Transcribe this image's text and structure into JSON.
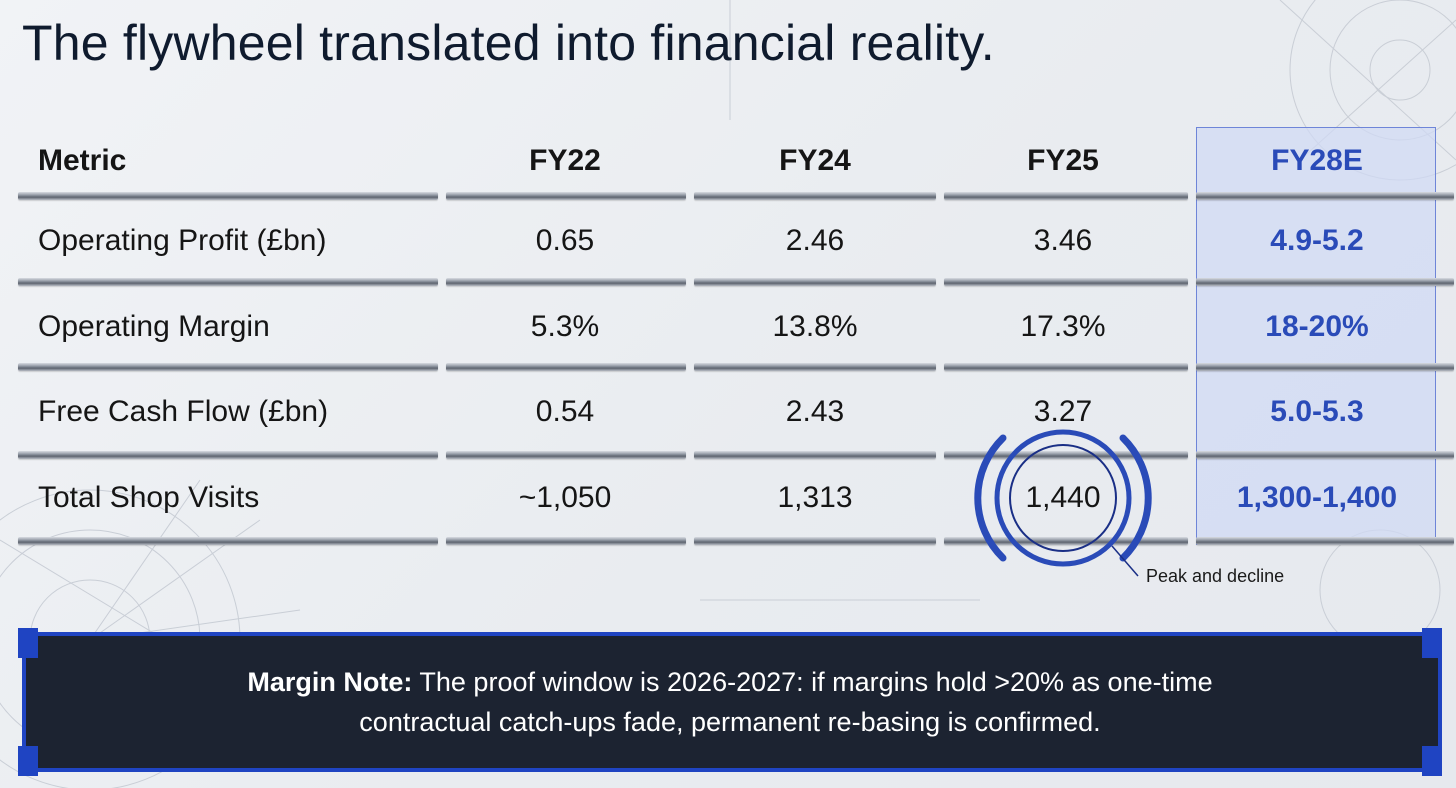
{
  "title": "The flywheel translated into financial reality.",
  "table": {
    "headers": [
      "Metric",
      "FY22",
      "FY24",
      "FY25",
      "FY28E"
    ],
    "rows": [
      [
        "Operating Profit (£bn)",
        "0.65",
        "2.46",
        "3.46",
        "4.9-5.2"
      ],
      [
        "Operating Margin",
        "5.3%",
        "13.8%",
        "17.3%",
        "18-20%"
      ],
      [
        "Free Cash Flow (£bn)",
        "0.54",
        "2.43",
        "3.27",
        "5.0-5.3"
      ],
      [
        "Total Shop Visits",
        "~1,050",
        "1,313",
        "1,440",
        "1,300-1,400"
      ]
    ]
  },
  "annotation": "Peak and decline",
  "note": {
    "label": "Margin Note:",
    "line1": "The proof window is 2026-2027: if margins hold >20% as one-time",
    "line2": "contractual catch-ups fade, permanent re-basing is confirmed."
  },
  "colors": {
    "accent": "#2a4bb8",
    "note_bg": "#1c2331",
    "note_border": "#1f44c2",
    "highlight_bg": "#d0d9f4"
  }
}
